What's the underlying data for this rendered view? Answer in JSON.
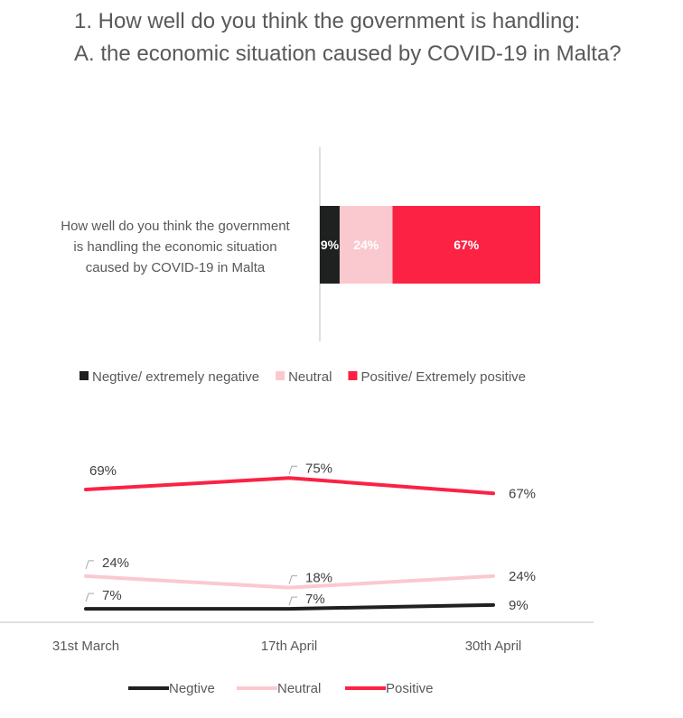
{
  "title": {
    "line1": "1.  How well do you think the government is handling:",
    "line2": "A.     the economic situation caused by COVID-19 in Malta?"
  },
  "colors": {
    "negative": "#1f2120",
    "neutral": "#fac9cf",
    "positive": "#fb2244",
    "text": "#595959",
    "axis": "#bfbfbf"
  },
  "chart_data": [
    {
      "type": "bar",
      "orientation": "horizontal",
      "stacked": true,
      "categories": [
        "How well do you think the government is handling the economic situation caused by COVID-19 in Malta"
      ],
      "category_lines": [
        "How well do you think the government",
        "is handling the economic situation",
        "caused by COVID-19 in Malta"
      ],
      "series": [
        {
          "name": "Negtive/ extremely negative",
          "values": [
            9
          ],
          "label": "9%",
          "color": "#1f2120",
          "label_color": "#ffffff"
        },
        {
          "name": "Neutral",
          "values": [
            24
          ],
          "label": "24%",
          "color": "#fac9cf",
          "label_color": "#ffffff"
        },
        {
          "name": "Positive/ Extremely positive",
          "values": [
            67
          ],
          "label": "67%",
          "color": "#fb2244",
          "label_color": "#ffffff"
        }
      ],
      "xlim": [
        0,
        100
      ],
      "legend": "bottom"
    },
    {
      "type": "line",
      "x": [
        "31st March",
        "17th April",
        "30th April"
      ],
      "ylim": [
        0,
        80
      ],
      "series": [
        {
          "name": "Negtive",
          "values": [
            7,
            7,
            9
          ],
          "labels": [
            "7%",
            "7%",
            "9%"
          ],
          "color": "#1f2120"
        },
        {
          "name": "Neutral",
          "values": [
            24,
            18,
            24
          ],
          "labels": [
            "24%",
            "18%",
            "24%"
          ],
          "color": "#fac9cf"
        },
        {
          "name": "Positive",
          "values": [
            69,
            75,
            67
          ],
          "labels": [
            "69%",
            "75%",
            "67%"
          ],
          "color": "#fb2244"
        }
      ],
      "legend": "bottom"
    }
  ]
}
